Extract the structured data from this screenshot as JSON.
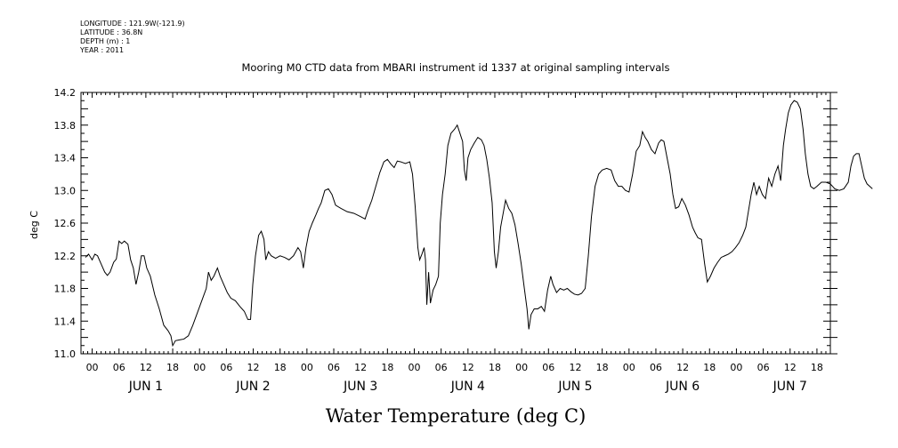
{
  "metadata": {
    "longitude": "LONGITUDE : 121.9W(-121.9)",
    "latitude": "LATITUDE : 36.8N",
    "depth": "DEPTH (m) : 1",
    "year": "YEAR : 2011"
  },
  "chart_data": {
    "type": "line",
    "title": "Mooring M0 CTD data from MBARI instrument id 1337 at original sampling intervals",
    "xlabel": "Water Temperature (deg C)",
    "ylabel": "deg C",
    "ylim": [
      11.0,
      14.2
    ],
    "xlim_hours": [
      -2.5,
      165
    ],
    "yticks": [
      "11.0",
      "11.4",
      "11.8",
      "12.2",
      "12.6",
      "13.0",
      "13.4",
      "13.8",
      "14.2"
    ],
    "hour_tick_labels": [
      "00",
      "06",
      "12",
      "18"
    ],
    "days": [
      "JUN  1",
      "JUN  2",
      "JUN  3",
      "JUN  4",
      "JUN  5",
      "JUN  6",
      "JUN  7"
    ],
    "grid": false,
    "series": [
      {
        "values_hours": [
          [
            -1.5,
            12.18
          ],
          [
            -0.8,
            12.22
          ],
          [
            0,
            12.15
          ],
          [
            0.6,
            12.22
          ],
          [
            1.2,
            12.2
          ],
          [
            2,
            12.1
          ],
          [
            2.8,
            12.0
          ],
          [
            3.4,
            11.96
          ],
          [
            4,
            12.0
          ],
          [
            4.8,
            12.12
          ],
          [
            5.4,
            12.16
          ],
          [
            6,
            12.38
          ],
          [
            6.6,
            12.35
          ],
          [
            7.2,
            12.38
          ],
          [
            8,
            12.34
          ],
          [
            8.6,
            12.15
          ],
          [
            9.2,
            12.05
          ],
          [
            9.8,
            11.85
          ],
          [
            10.4,
            12.0
          ],
          [
            11,
            12.2
          ],
          [
            11.6,
            12.2
          ],
          [
            12.2,
            12.05
          ],
          [
            13,
            11.95
          ],
          [
            14,
            11.72
          ],
          [
            15,
            11.55
          ],
          [
            16,
            11.35
          ],
          [
            17,
            11.28
          ],
          [
            17.6,
            11.22
          ],
          [
            18,
            11.1
          ],
          [
            18.6,
            11.16
          ],
          [
            19.5,
            11.17
          ],
          [
            20.5,
            11.18
          ],
          [
            21.5,
            11.22
          ],
          [
            22.5,
            11.35
          ],
          [
            23.5,
            11.5
          ],
          [
            24.5,
            11.65
          ],
          [
            25.5,
            11.8
          ],
          [
            26,
            12.0
          ],
          [
            26.6,
            11.9
          ],
          [
            27.2,
            11.95
          ],
          [
            28,
            12.05
          ],
          [
            28.6,
            11.95
          ],
          [
            29.4,
            11.85
          ],
          [
            30.2,
            11.75
          ],
          [
            31,
            11.68
          ],
          [
            32,
            11.65
          ],
          [
            33,
            11.58
          ],
          [
            34,
            11.52
          ],
          [
            34.8,
            11.42
          ],
          [
            35.4,
            11.42
          ],
          [
            35.9,
            11.85
          ],
          [
            36.5,
            12.2
          ],
          [
            37.2,
            12.45
          ],
          [
            37.8,
            12.5
          ],
          [
            38.4,
            12.4
          ],
          [
            38.8,
            12.15
          ],
          [
            39.4,
            12.25
          ],
          [
            40,
            12.2
          ],
          [
            41,
            12.17
          ],
          [
            42,
            12.2
          ],
          [
            43,
            12.18
          ],
          [
            44,
            12.15
          ],
          [
            45,
            12.2
          ],
          [
            46,
            12.3
          ],
          [
            46.6,
            12.25
          ],
          [
            47.2,
            12.05
          ],
          [
            47.8,
            12.3
          ],
          [
            48.5,
            12.5
          ],
          [
            49.2,
            12.6
          ],
          [
            50,
            12.7
          ],
          [
            50.6,
            12.78
          ],
          [
            51.2,
            12.85
          ],
          [
            52,
            13.0
          ],
          [
            52.8,
            13.02
          ],
          [
            53.6,
            12.95
          ],
          [
            54.4,
            12.82
          ],
          [
            55.6,
            12.78
          ],
          [
            57,
            12.74
          ],
          [
            58.5,
            12.72
          ],
          [
            60,
            12.68
          ],
          [
            61,
            12.65
          ],
          [
            61.6,
            12.75
          ],
          [
            62.5,
            12.88
          ],
          [
            63.4,
            13.05
          ],
          [
            64.3,
            13.22
          ],
          [
            65.2,
            13.35
          ],
          [
            66,
            13.38
          ],
          [
            66.8,
            13.32
          ],
          [
            67.5,
            13.28
          ],
          [
            68.2,
            13.36
          ],
          [
            69,
            13.35
          ],
          [
            70,
            13.33
          ],
          [
            71,
            13.35
          ],
          [
            71.6,
            13.2
          ],
          [
            72.2,
            12.8
          ],
          [
            72.8,
            12.3
          ],
          [
            73.2,
            12.15
          ],
          [
            73.7,
            12.22
          ],
          [
            74.2,
            12.3
          ],
          [
            74.5,
            12.15
          ],
          [
            74.8,
            11.6
          ],
          [
            75.2,
            12.0
          ],
          [
            75.6,
            11.62
          ],
          [
            76.2,
            11.78
          ],
          [
            76.8,
            11.85
          ],
          [
            77.4,
            11.95
          ],
          [
            77.8,
            12.6
          ],
          [
            78.3,
            12.95
          ],
          [
            78.9,
            13.2
          ],
          [
            79.5,
            13.55
          ],
          [
            80.2,
            13.7
          ],
          [
            81,
            13.75
          ],
          [
            81.6,
            13.8
          ],
          [
            82.2,
            13.7
          ],
          [
            82.8,
            13.6
          ],
          [
            83.2,
            13.25
          ],
          [
            83.6,
            13.12
          ],
          [
            84,
            13.4
          ],
          [
            84.6,
            13.5
          ],
          [
            85.4,
            13.58
          ],
          [
            86.2,
            13.65
          ],
          [
            87,
            13.62
          ],
          [
            87.6,
            13.55
          ],
          [
            88.2,
            13.38
          ],
          [
            88.8,
            13.15
          ],
          [
            89.4,
            12.85
          ],
          [
            89.9,
            12.25
          ],
          [
            90.3,
            12.05
          ],
          [
            90.8,
            12.25
          ],
          [
            91.3,
            12.55
          ],
          [
            91.8,
            12.7
          ],
          [
            92.4,
            12.88
          ],
          [
            93.1,
            12.78
          ],
          [
            93.8,
            12.72
          ],
          [
            94.5,
            12.58
          ],
          [
            95.2,
            12.35
          ],
          [
            95.9,
            12.1
          ],
          [
            96.6,
            11.8
          ],
          [
            97.2,
            11.55
          ],
          [
            97.6,
            11.3
          ],
          [
            98.1,
            11.48
          ],
          [
            98.8,
            11.55
          ],
          [
            99.6,
            11.55
          ],
          [
            100.4,
            11.58
          ],
          [
            101.1,
            11.52
          ],
          [
            101.8,
            11.78
          ],
          [
            102.5,
            11.95
          ],
          [
            103,
            11.85
          ],
          [
            103.8,
            11.75
          ],
          [
            104.6,
            11.8
          ],
          [
            105.4,
            11.78
          ],
          [
            106.2,
            11.8
          ],
          [
            107,
            11.76
          ],
          [
            107.8,
            11.73
          ],
          [
            108.6,
            11.72
          ],
          [
            109.4,
            11.74
          ],
          [
            110.2,
            11.8
          ],
          [
            110.9,
            12.2
          ],
          [
            111.6,
            12.68
          ],
          [
            112.4,
            13.05
          ],
          [
            113.2,
            13.2
          ],
          [
            114,
            13.25
          ],
          [
            115,
            13.27
          ],
          [
            116,
            13.25
          ],
          [
            116.8,
            13.12
          ],
          [
            117.6,
            13.05
          ],
          [
            118.4,
            13.05
          ],
          [
            119.2,
            13.0
          ],
          [
            120,
            12.98
          ],
          [
            120.8,
            13.2
          ],
          [
            121.6,
            13.48
          ],
          [
            122.4,
            13.55
          ],
          [
            123,
            13.72
          ],
          [
            123.6,
            13.65
          ],
          [
            124.2,
            13.6
          ],
          [
            125,
            13.5
          ],
          [
            125.8,
            13.45
          ],
          [
            126.6,
            13.58
          ],
          [
            127.2,
            13.62
          ],
          [
            127.8,
            13.6
          ],
          [
            128.5,
            13.4
          ],
          [
            129.2,
            13.2
          ],
          [
            129.8,
            12.95
          ],
          [
            130.4,
            12.78
          ],
          [
            131.1,
            12.8
          ],
          [
            131.8,
            12.9
          ],
          [
            132.6,
            12.82
          ],
          [
            133.4,
            12.7
          ],
          [
            134.2,
            12.55
          ],
          [
            134.8,
            12.48
          ],
          [
            135.4,
            12.42
          ],
          [
            136.2,
            12.4
          ],
          [
            136.9,
            12.1
          ],
          [
            137.5,
            11.88
          ],
          [
            138.2,
            11.95
          ],
          [
            139,
            12.05
          ],
          [
            139.8,
            12.12
          ],
          [
            140.6,
            12.18
          ],
          [
            141.4,
            12.2
          ],
          [
            142.2,
            12.22
          ],
          [
            143,
            12.25
          ],
          [
            143.8,
            12.3
          ],
          [
            144.6,
            12.36
          ],
          [
            145.4,
            12.45
          ],
          [
            146.1,
            12.55
          ],
          [
            146.7,
            12.75
          ],
          [
            147.3,
            12.95
          ],
          [
            147.9,
            13.1
          ],
          [
            148.5,
            12.95
          ],
          [
            149.1,
            13.05
          ],
          [
            149.8,
            12.95
          ],
          [
            150.5,
            12.9
          ],
          [
            151.2,
            13.15
          ],
          [
            151.9,
            13.05
          ],
          [
            152.6,
            13.2
          ],
          [
            153.3,
            13.3
          ],
          [
            153.9,
            13.12
          ],
          [
            154.5,
            13.55
          ],
          [
            155,
            13.75
          ],
          [
            155.6,
            13.95
          ],
          [
            156.2,
            14.05
          ],
          [
            156.9,
            14.1
          ],
          [
            157.6,
            14.08
          ],
          [
            158.3,
            14.0
          ],
          [
            158.9,
            13.75
          ],
          [
            159.4,
            13.45
          ],
          [
            160,
            13.2
          ],
          [
            160.6,
            13.05
          ],
          [
            161.3,
            13.02
          ],
          [
            162,
            13.05
          ],
          [
            163,
            13.1
          ],
          [
            164,
            13.1
          ],
          [
            165,
            13.08
          ],
          [
            166,
            13.02
          ],
          [
            167,
            13.0
          ],
          [
            168,
            13.02
          ],
          [
            169,
            13.1
          ],
          [
            169.6,
            13.3
          ],
          [
            170.2,
            13.42
          ],
          [
            170.8,
            13.45
          ],
          [
            171.4,
            13.45
          ],
          [
            172,
            13.3
          ],
          [
            172.6,
            13.15
          ],
          [
            173.2,
            13.08
          ],
          [
            173.8,
            13.05
          ],
          [
            174.4,
            13.02
          ]
        ]
      }
    ]
  }
}
